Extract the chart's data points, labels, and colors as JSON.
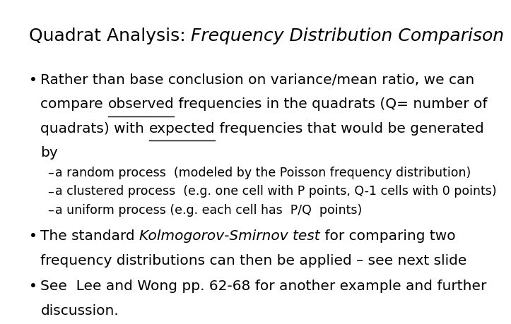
{
  "title_normal": "Quadrat Analysis: ",
  "title_italic": "Frequency Distribution Comparison",
  "title_fontsize": 18,
  "background_color": "#ffffff",
  "text_color": "#000000",
  "body_fontsize": 14.5,
  "sub_fontsize": 12.5,
  "sub_bullets": [
    "a random process  (modeled by the Poisson frequency distribution)",
    "a clustered process  (e.g. one cell with P points, Q-1 cells with 0 points)",
    "a uniform process (e.g. each cell has  P/Q  points)"
  ],
  "bullet2_italic": "Kolmogorov-Smirnov test",
  "bullet3_line1": "See  Lee and Wong pp. 62-68 for another example and further",
  "bullet3_line2": "discussion."
}
